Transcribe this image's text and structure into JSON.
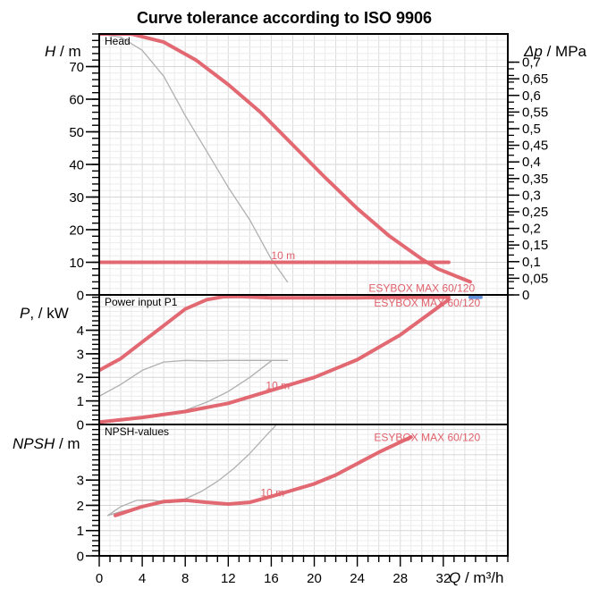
{
  "title": "Curve tolerance according to ISO 9906",
  "chart_data": [
    {
      "panel": "head",
      "type": "line",
      "panel_label": "Head",
      "ylabel": "H / m",
      "ylabel_symbol": "H",
      "ylabel_unit": "/ m",
      "y2label_symbol": "Δp",
      "y2label_unit": "/ MPa",
      "ylim": [
        0,
        80
      ],
      "yticks": [
        0,
        10,
        20,
        30,
        40,
        50,
        60,
        70
      ],
      "y2ticks": [
        "0",
        "0,05",
        "0,1",
        "0,15",
        "0,2",
        "0,25",
        "0,3",
        "0,35",
        "0,4",
        "0,45",
        "0,5",
        "0,55",
        "0,6",
        "0,65",
        "0,7"
      ],
      "y2values": [
        0,
        0.05,
        0.1,
        0.15,
        0.2,
        0.25,
        0.3,
        0.35,
        0.4,
        0.45,
        0.5,
        0.55,
        0.6,
        0.65,
        0.7
      ],
      "series": [
        {
          "name": "ESYBOX MAX 60/120",
          "color": "#e0606a",
          "width": 4,
          "x": [
            0,
            3,
            6,
            9,
            12,
            15,
            18,
            21,
            24,
            27,
            30,
            31.5,
            34.5
          ],
          "y": [
            80,
            80,
            77.5,
            72,
            64.5,
            56,
            46,
            36,
            26.5,
            18,
            11,
            8,
            4
          ]
        },
        {
          "name": "10 m",
          "color": "#e0606a",
          "width": 4,
          "x": [
            0,
            32.5
          ],
          "y": [
            10,
            10
          ]
        },
        {
          "name": "",
          "color": "#b0b0b0",
          "width": 1.3,
          "x": [
            0,
            2,
            4,
            6,
            8,
            10,
            12,
            14,
            16,
            17.5
          ],
          "y": [
            80,
            79,
            75,
            67,
            55,
            44,
            33,
            23,
            11,
            4
          ]
        }
      ],
      "annotations": [
        {
          "text": "10 m",
          "x": 16,
          "y": 11
        },
        {
          "text": "ESYBOX MAX 60/120",
          "x": 30,
          "y": 1
        }
      ]
    },
    {
      "panel": "power",
      "type": "line",
      "panel_label": "Power input P1",
      "ylabel_symbol": "P",
      "ylabel_unit": ", / kW",
      "ylim": [
        0,
        5.5
      ],
      "yticks": [
        0,
        1,
        2,
        3,
        4
      ],
      "series": [
        {
          "name": "ESYBOX MAX 60/120",
          "color": "#e0606a",
          "width": 4,
          "x": [
            0,
            2,
            4,
            6,
            8,
            10,
            11.5,
            13,
            16,
            20,
            24,
            28,
            32.5
          ],
          "y": [
            2.3,
            2.8,
            3.5,
            4.2,
            4.9,
            5.3,
            5.42,
            5.43,
            5.38,
            5.38,
            5.38,
            5.4,
            5.4
          ]
        },
        {
          "name": "",
          "color": "#5b8ad6",
          "width": 4,
          "x": [
            34.5,
            35.5
          ],
          "y": [
            5.4,
            5.4
          ]
        },
        {
          "name": "10 m",
          "color": "#e0606a",
          "width": 4,
          "x": [
            0,
            4,
            8,
            12,
            16,
            20,
            24,
            28,
            32.5
          ],
          "y": [
            0.1,
            0.3,
            0.55,
            0.9,
            1.45,
            2.0,
            2.75,
            3.8,
            5.3
          ]
        },
        {
          "name": "",
          "color": "#b0b0b0",
          "width": 1.3,
          "x": [
            0,
            2,
            4,
            6,
            8,
            10,
            12,
            14,
            16,
            17.5
          ],
          "y": [
            1.2,
            1.7,
            2.3,
            2.65,
            2.72,
            2.7,
            2.72,
            2.72,
            2.72,
            2.72
          ]
        },
        {
          "name": "",
          "color": "#b0b0b0",
          "width": 1.3,
          "x": [
            0,
            4,
            8,
            10,
            12,
            14,
            16
          ],
          "y": [
            0.1,
            0.25,
            0.6,
            0.95,
            1.4,
            2.0,
            2.7
          ]
        }
      ],
      "annotations": [
        {
          "text": "10 m",
          "x": 15.5,
          "y": 1.5
        },
        {
          "text": "ESYBOX MAX 60/120",
          "x": 30.5,
          "y": 5.0
        }
      ]
    },
    {
      "panel": "npsh",
      "type": "line",
      "panel_label": "NPSH-values",
      "ylabel_symbol": "NPSH",
      "ylabel_unit": "/ m",
      "ylim": [
        0,
        5.2
      ],
      "yticks": [
        0,
        1,
        2,
        3
      ],
      "xlabel_symbol": "Q",
      "xlabel_unit": "/ m³/h",
      "xticks": [
        0,
        4,
        8,
        12,
        16,
        20,
        24,
        28,
        32
      ],
      "xlim": [
        0,
        38
      ],
      "series": [
        {
          "name": "10 m",
          "color": "#e0606a",
          "width": 4,
          "x": [
            1.5,
            4,
            6,
            8,
            10,
            12,
            14,
            16,
            18,
            20,
            22,
            24,
            26,
            29
          ],
          "y": [
            1.6,
            1.95,
            2.15,
            2.2,
            2.12,
            2.05,
            2.12,
            2.35,
            2.6,
            2.85,
            3.2,
            3.65,
            4.1,
            4.7
          ]
        },
        {
          "name": "",
          "color": "#b0b0b0",
          "width": 1.3,
          "x": [
            0.8,
            2,
            3.5,
            5,
            6.5,
            8,
            9.5,
            11,
            12.5,
            14,
            15.5,
            16.5
          ],
          "y": [
            1.6,
            1.95,
            2.2,
            2.2,
            2.1,
            2.25,
            2.55,
            2.95,
            3.45,
            4.05,
            4.75,
            5.2
          ]
        },
        {
          "name": "",
          "color": "#b0b0b0",
          "width": 1.3,
          "x": [
            0.8,
            2,
            4,
            6,
            8
          ],
          "y": [
            1.6,
            1.75,
            1.95,
            2.1,
            2.15
          ]
        }
      ],
      "annotations": [
        {
          "text": "10 m",
          "x": 15,
          "y": 2.35
        },
        {
          "text": "ESYBOX MAX 60/120",
          "x": 30.5,
          "y": 4.55
        }
      ]
    }
  ]
}
